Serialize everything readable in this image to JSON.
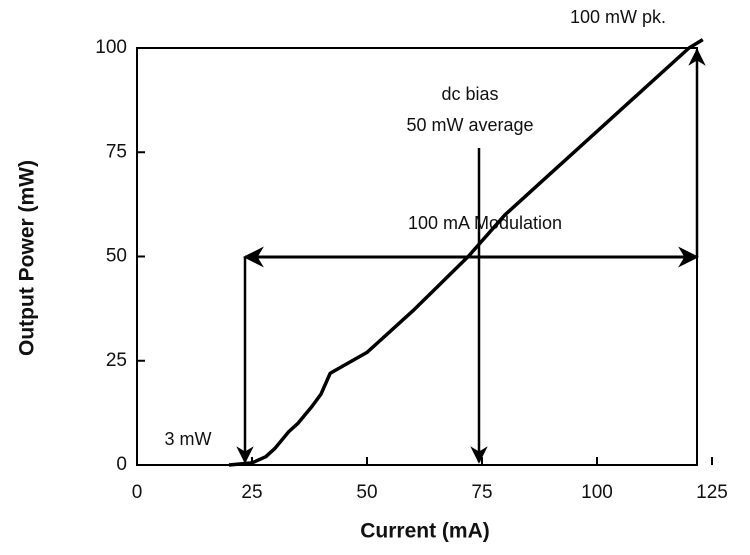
{
  "chart_data": {
    "type": "line",
    "xlabel": "Current (mA)",
    "ylabel": "Output Power (mW)",
    "x": [
      20,
      25,
      28,
      30,
      33,
      35,
      38,
      40,
      42,
      50,
      60,
      72,
      80,
      90,
      110,
      120,
      123
    ],
    "series": [
      {
        "name": null,
        "color": "#000000",
        "values": [
          0,
          0.5,
          2,
          4,
          8,
          10,
          14,
          17,
          22,
          27,
          37,
          50,
          60,
          70,
          90,
          100,
          102
        ]
      }
    ],
    "xlim": [
      0,
      125
    ],
    "xticks": [
      0,
      25,
      50,
      75,
      100,
      125
    ],
    "ylim": [
      0,
      100
    ],
    "yticks": [
      0,
      25,
      50,
      75,
      100
    ],
    "annotations": [
      "100 mW pk.",
      "dc bias",
      "50 mW average",
      "100 mA Modulation",
      "3 mW"
    ]
  }
}
